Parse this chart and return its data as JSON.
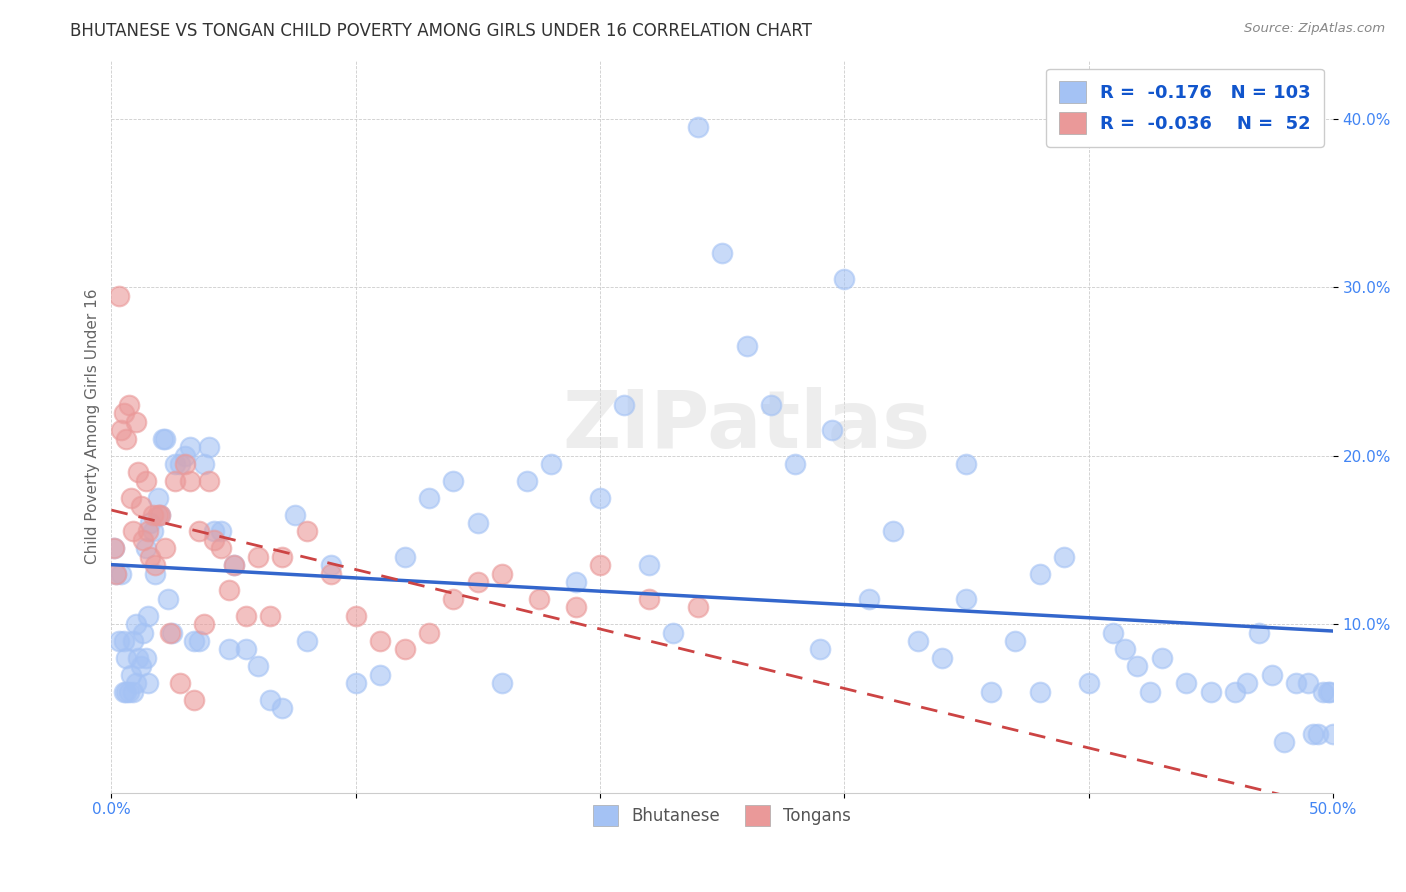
{
  "title": "BHUTANESE VS TONGAN CHILD POVERTY AMONG GIRLS UNDER 16 CORRELATION CHART",
  "source": "Source: ZipAtlas.com",
  "ylabel": "Child Poverty Among Girls Under 16",
  "watermark": "ZIPatlas",
  "x_min": 0.0,
  "x_max": 0.5,
  "y_min": 0.0,
  "y_max": 0.435,
  "x_ticks": [
    0.0,
    0.1,
    0.2,
    0.3,
    0.4,
    0.5
  ],
  "x_tick_labels": [
    "0.0%",
    "",
    "",
    "",
    "",
    "50.0%"
  ],
  "y_ticks": [
    0.1,
    0.2,
    0.3,
    0.4
  ],
  "y_tick_labels": [
    "10.0%",
    "20.0%",
    "30.0%",
    "40.0%"
  ],
  "bhutanese_R": "-0.176",
  "bhutanese_N": "103",
  "tongan_R": "-0.036",
  "tongan_N": "52",
  "blue_color": "#A4C2F4",
  "pink_color": "#EA9999",
  "blue_line_color": "#3366CC",
  "pink_line_color": "#CC4444",
  "title_color": "#333333",
  "axis_tick_color": "#4285F4",
  "legend_text_color": "#1155CC",
  "watermark_color": "#DDDDDD",
  "bhutanese_x": [
    0.001,
    0.002,
    0.003,
    0.004,
    0.005,
    0.005,
    0.006,
    0.006,
    0.007,
    0.008,
    0.009,
    0.009,
    0.01,
    0.01,
    0.011,
    0.012,
    0.013,
    0.014,
    0.014,
    0.015,
    0.015,
    0.016,
    0.017,
    0.018,
    0.019,
    0.02,
    0.021,
    0.022,
    0.023,
    0.025,
    0.026,
    0.028,
    0.03,
    0.032,
    0.034,
    0.036,
    0.038,
    0.04,
    0.042,
    0.045,
    0.048,
    0.05,
    0.055,
    0.06,
    0.065,
    0.07,
    0.075,
    0.08,
    0.09,
    0.1,
    0.11,
    0.12,
    0.13,
    0.14,
    0.15,
    0.16,
    0.17,
    0.18,
    0.19,
    0.2,
    0.21,
    0.22,
    0.23,
    0.24,
    0.25,
    0.26,
    0.27,
    0.28,
    0.29,
    0.3,
    0.31,
    0.32,
    0.33,
    0.34,
    0.35,
    0.36,
    0.37,
    0.38,
    0.39,
    0.4,
    0.41,
    0.42,
    0.43,
    0.44,
    0.45,
    0.46,
    0.465,
    0.47,
    0.475,
    0.48,
    0.485,
    0.49,
    0.492,
    0.494,
    0.496,
    0.498,
    0.499,
    0.5,
    0.35,
    0.415,
    0.425,
    0.38,
    0.295
  ],
  "bhutanese_y": [
    0.145,
    0.13,
    0.09,
    0.13,
    0.06,
    0.09,
    0.06,
    0.08,
    0.06,
    0.07,
    0.06,
    0.09,
    0.065,
    0.1,
    0.08,
    0.075,
    0.095,
    0.08,
    0.145,
    0.065,
    0.105,
    0.16,
    0.155,
    0.13,
    0.175,
    0.165,
    0.21,
    0.21,
    0.115,
    0.095,
    0.195,
    0.195,
    0.2,
    0.205,
    0.09,
    0.09,
    0.195,
    0.205,
    0.155,
    0.155,
    0.085,
    0.135,
    0.085,
    0.075,
    0.055,
    0.05,
    0.165,
    0.09,
    0.135,
    0.065,
    0.07,
    0.14,
    0.175,
    0.185,
    0.16,
    0.065,
    0.185,
    0.195,
    0.125,
    0.175,
    0.23,
    0.135,
    0.095,
    0.395,
    0.32,
    0.265,
    0.23,
    0.195,
    0.085,
    0.305,
    0.115,
    0.155,
    0.09,
    0.08,
    0.115,
    0.06,
    0.09,
    0.13,
    0.14,
    0.065,
    0.095,
    0.075,
    0.08,
    0.065,
    0.06,
    0.06,
    0.065,
    0.095,
    0.07,
    0.03,
    0.065,
    0.065,
    0.035,
    0.035,
    0.06,
    0.06,
    0.06,
    0.035,
    0.195,
    0.085,
    0.06,
    0.06,
    0.215
  ],
  "tongan_x": [
    0.001,
    0.002,
    0.003,
    0.004,
    0.005,
    0.006,
    0.007,
    0.008,
    0.009,
    0.01,
    0.011,
    0.012,
    0.013,
    0.014,
    0.015,
    0.016,
    0.017,
    0.018,
    0.019,
    0.02,
    0.022,
    0.024,
    0.026,
    0.028,
    0.03,
    0.032,
    0.034,
    0.036,
    0.038,
    0.04,
    0.042,
    0.045,
    0.048,
    0.05,
    0.055,
    0.06,
    0.065,
    0.07,
    0.08,
    0.09,
    0.1,
    0.11,
    0.12,
    0.13,
    0.14,
    0.15,
    0.16,
    0.175,
    0.19,
    0.2,
    0.22,
    0.24
  ],
  "tongan_y": [
    0.145,
    0.13,
    0.295,
    0.215,
    0.225,
    0.21,
    0.23,
    0.175,
    0.155,
    0.22,
    0.19,
    0.17,
    0.15,
    0.185,
    0.155,
    0.14,
    0.165,
    0.135,
    0.165,
    0.165,
    0.145,
    0.095,
    0.185,
    0.065,
    0.195,
    0.185,
    0.055,
    0.155,
    0.1,
    0.185,
    0.15,
    0.145,
    0.12,
    0.135,
    0.105,
    0.14,
    0.105,
    0.14,
    0.155,
    0.13,
    0.105,
    0.09,
    0.085,
    0.095,
    0.115,
    0.125,
    0.13,
    0.115,
    0.11,
    0.135,
    0.115,
    0.11
  ]
}
